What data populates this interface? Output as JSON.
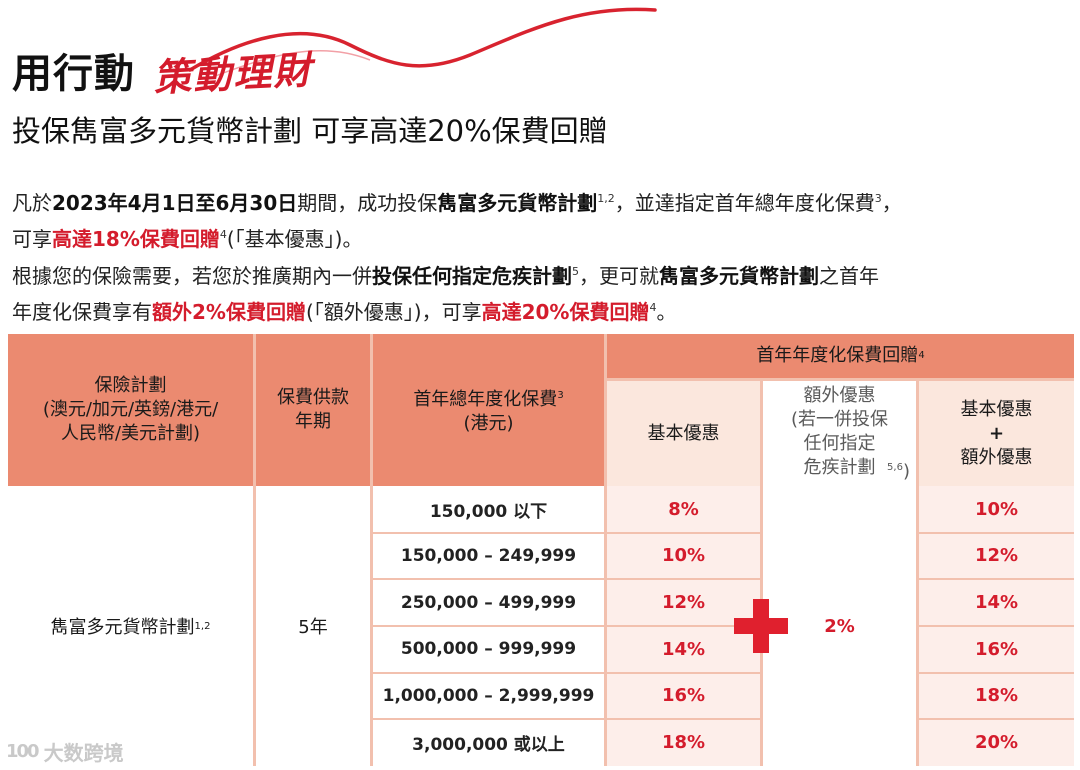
{
  "headline": {
    "main": "用行動",
    "script": "策動理財"
  },
  "subtitle": "投保雋富多元貨幣計劃 可享高達20%保費回贈",
  "paragraph1": {
    "t1": "凡於",
    "t2": "2023年4月1日至6月30日",
    "t3": "期間，成功投保",
    "t4": "雋富多元貨幣計劃",
    "s1": "1,2",
    "t5": "，並達指定首年總年度化保費",
    "s2": "3",
    "t6": "，",
    "t7": "可享",
    "t8": "高達18%保費回贈",
    "s3": "4",
    "t9": "(「基本優惠」)。"
  },
  "paragraph2": {
    "t1": "根據您的保險需要，若您於推廣期內一併",
    "t2": "投保任何指定危疾計劃",
    "s1": "5",
    "t3": "，更可就",
    "t4": "雋富多元貨幣計劃",
    "t5": "之首年",
    "t6": "年度化保費享有",
    "t7": "額外2%保費回贈",
    "t8": "(「額外優惠」)，可享",
    "t9": "高達20%保費回贈",
    "s2": "4",
    "t10": "。"
  },
  "table": {
    "col_plan": "保險計劃\n(澳元/加元/英鎊/港元/\n人民幣/美元計劃)",
    "col_term": "保費供款\n年期",
    "col_premium": "首年總年度化保費",
    "col_premium_sup": "3",
    "col_premium_unit": "(港元)",
    "col_rebate": "首年年度化保費回贈",
    "col_rebate_sup": "4",
    "sub_basic": "基本優惠",
    "sub_extra": "額外優惠\n(若一併投保\n任何指定\n危疾計劃",
    "sub_extra_sup": "5,6",
    "sub_extra_end": ")",
    "sub_total_1": "基本優惠",
    "sub_total_2": "+",
    "sub_total_3": "額外優惠",
    "plan_name": "雋富多元貨幣計劃",
    "plan_sup": "1,2",
    "term": "5年",
    "extra_value": "2%",
    "rows": [
      {
        "band": "150,000 以下",
        "basic": "8%",
        "total": "10%"
      },
      {
        "band": "150,000 – 249,999",
        "basic": "10%",
        "total": "12%"
      },
      {
        "band": "250,000 – 499,999",
        "basic": "12%",
        "total": "14%"
      },
      {
        "band": "500,000 – 999,999",
        "basic": "14%",
        "total": "16%"
      },
      {
        "band": "1,000,000 – 2,999,999",
        "basic": "16%",
        "total": "18%"
      },
      {
        "band": "3,000,000 或以上",
        "basic": "18%",
        "total": "20%"
      }
    ]
  },
  "watermark": {
    "logo": "100",
    "text": "大数跨境"
  },
  "colors": {
    "accent_red": "#d41c2c",
    "header_salmon": "#eb8a70",
    "row_tint": "#fbe7dd"
  }
}
